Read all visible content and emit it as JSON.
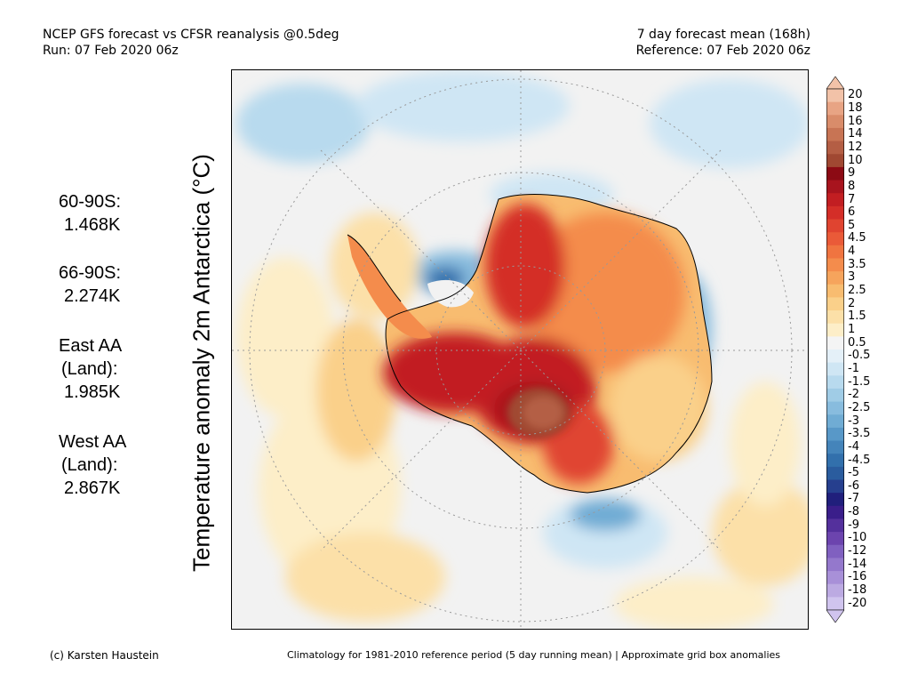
{
  "header": {
    "left_line1": "NCEP GFS forecast vs CFSR reanalysis @0.5deg",
    "left_line2": "Run: 07 Feb 2020 06z",
    "right_line1": "7 day forecast mean (168h)",
    "right_line2": "Reference: 07 Feb 2020 06z"
  },
  "axis_title": "Temperature anomaly 2m Antarctica (°C)",
  "stats": [
    {
      "line1": "60-90S:",
      "line2": "",
      "value": "1.468K"
    },
    {
      "line1": "66-90S:",
      "line2": "",
      "value": "2.274K"
    },
    {
      "line1": "East AA",
      "line2": "(Land):",
      "value": "1.985K"
    },
    {
      "line1": "West AA",
      "line2": "(Land):",
      "value": "2.867K"
    }
  ],
  "colorbar": {
    "labels": [
      "20",
      "18",
      "16",
      "14",
      "12",
      "10",
      "9",
      "8",
      "7",
      "6",
      "5",
      "4.5",
      "4",
      "3.5",
      "3",
      "2.5",
      "2",
      "1.5",
      "1",
      "0.5",
      "-0.5",
      "-1",
      "-1.5",
      "-2",
      "-2.5",
      "-3",
      "-3.5",
      "-4",
      "-4.5",
      "-5",
      "-6",
      "-7",
      "-8",
      "-9",
      "-10",
      "-12",
      "-14",
      "-16",
      "-18",
      "-20"
    ],
    "colors": [
      "#f2c2a8",
      "#e8a484",
      "#d98c6a",
      "#c87454",
      "#b45e44",
      "#a04832",
      "#8c0a14",
      "#a8141e",
      "#c21e22",
      "#d42e28",
      "#e04430",
      "#ea5a38",
      "#f07440",
      "#f48c4c",
      "#f6a45c",
      "#f8bc70",
      "#fad08a",
      "#fce0a8",
      "#fdeec8",
      "#f4f4f4",
      "#e4f0f8",
      "#cfe6f4",
      "#b8daee",
      "#a0cce6",
      "#88bcde",
      "#70acd4",
      "#5898c8",
      "#4484ba",
      "#3270ac",
      "#2a5c9e",
      "#263f8e",
      "#201f7c",
      "#3a1e8a",
      "#54309c",
      "#6c44ae",
      "#8060c0",
      "#9478cc",
      "#a890d8",
      "#bcaae2",
      "#d0c4ee"
    ]
  },
  "footer": {
    "left": "(c) Karsten Haustein",
    "right": "Climatology for 1981-2010 reference period (5 day running mean) | Approximate grid box anomalies"
  }
}
